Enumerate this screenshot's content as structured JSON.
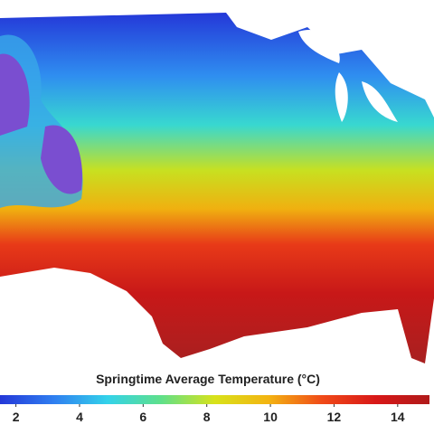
{
  "map": {
    "title": "Springtime Average Temperature (°C)",
    "colorbar": {
      "lim": [
        1.5,
        15
      ],
      "ticks": [
        2,
        4,
        6,
        8,
        10,
        12,
        14
      ],
      "colormap": [
        "#2438d8",
        "#2f7ef0",
        "#33d2ea",
        "#5fe08a",
        "#d8e21a",
        "#f3b412",
        "#f04a18",
        "#d81818",
        "#b01a1a"
      ]
    }
  }
}
